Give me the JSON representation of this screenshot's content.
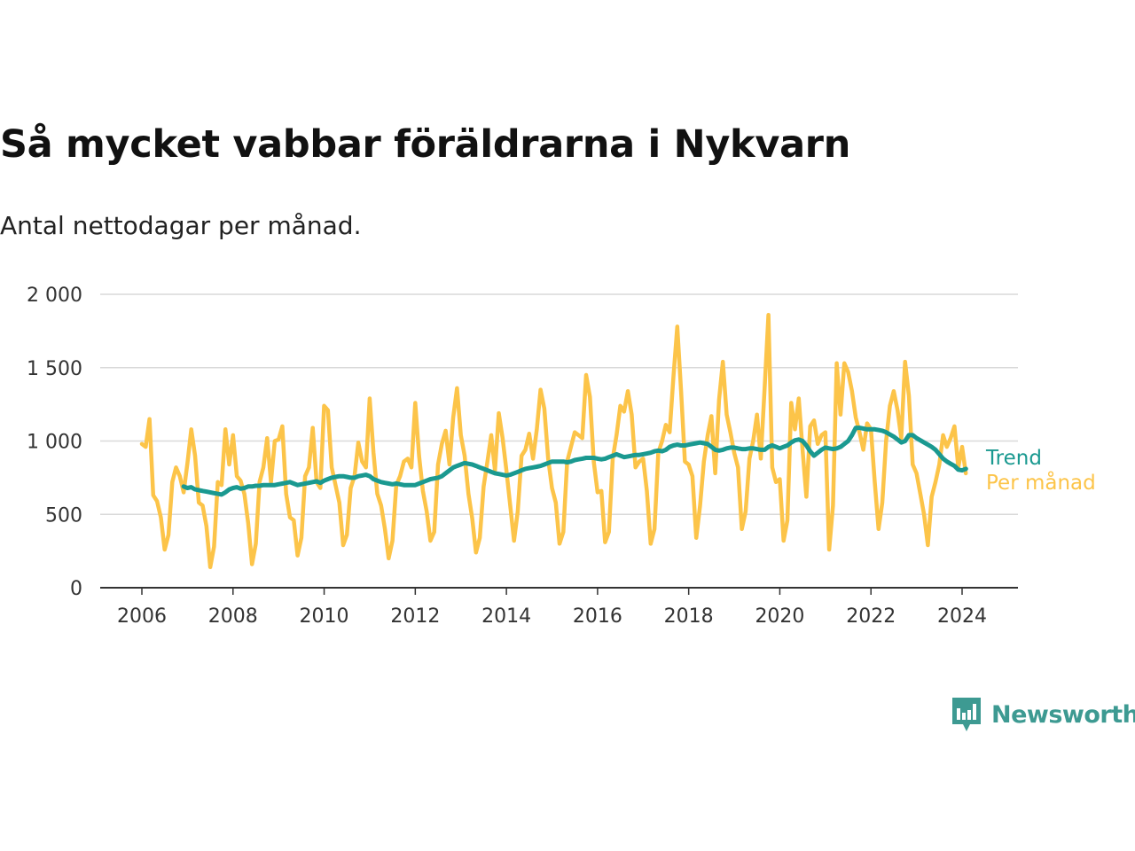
{
  "title": "Så mycket vabbar föräldrarna i Nykvarn",
  "subtitle": "Antal nettodagar per månad.",
  "brand": {
    "name": "Newsworthy",
    "icon": "newsworthy-logo-icon",
    "color": "#3d9a92"
  },
  "colors": {
    "trend": "#1a9990",
    "monthly": "#fcc449",
    "grid": "#d9d9d9",
    "axis": "#333333"
  },
  "chart_data": {
    "type": "line",
    "xlim": [
      2005.6,
      2025.2
    ],
    "ylim": [
      0,
      2000
    ],
    "yticks": [
      0,
      500,
      1000,
      1500,
      2000
    ],
    "ytick_labels": [
      "0",
      "500",
      "1 000",
      "1 500",
      "2 000"
    ],
    "xticks": [
      2006,
      2008,
      2010,
      2012,
      2014,
      2016,
      2018,
      2020,
      2022,
      2024
    ],
    "xtick_labels": [
      "2006",
      "2008",
      "2010",
      "2012",
      "2014",
      "2016",
      "2018",
      "2020",
      "2022",
      "2024"
    ],
    "grid": true,
    "legend": "inline-right",
    "series": [
      {
        "name": "Trend",
        "x_start": 2006.917,
        "step": 0.08333,
        "values": [
          690,
          680,
          685,
          670,
          665,
          660,
          655,
          650,
          645,
          640,
          635,
          650,
          670,
          680,
          685,
          675,
          680,
          690,
          690,
          695,
          695,
          700,
          700,
          700,
          700,
          705,
          710,
          715,
          720,
          710,
          700,
          705,
          710,
          715,
          720,
          725,
          715,
          730,
          740,
          750,
          755,
          760,
          760,
          755,
          750,
          750,
          760,
          765,
          770,
          760,
          740,
          730,
          720,
          715,
          710,
          705,
          710,
          705,
          700,
          700,
          700,
          700,
          710,
          720,
          730,
          740,
          745,
          750,
          760,
          780,
          800,
          820,
          830,
          840,
          850,
          845,
          840,
          830,
          820,
          810,
          800,
          790,
          780,
          775,
          770,
          765,
          770,
          780,
          790,
          800,
          810,
          815,
          820,
          825,
          830,
          840,
          850,
          860,
          860,
          860,
          860,
          855,
          860,
          870,
          875,
          880,
          885,
          885,
          885,
          880,
          875,
          880,
          890,
          900,
          910,
          900,
          890,
          895,
          900,
          905,
          905,
          910,
          915,
          920,
          930,
          935,
          930,
          940,
          960,
          970,
          975,
          970,
          970,
          975,
          980,
          985,
          990,
          985,
          980,
          960,
          940,
          935,
          940,
          950,
          955,
          955,
          950,
          945,
          945,
          950,
          950,
          945,
          940,
          940,
          960,
          970,
          960,
          950,
          960,
          970,
          990,
          1005,
          1010,
          1000,
          970,
          930,
          900,
          920,
          940,
          955,
          950,
          945,
          950,
          960,
          980,
          1000,
          1040,
          1090,
          1090,
          1085,
          1080,
          1080,
          1080,
          1075,
          1070,
          1060,
          1045,
          1030,
          1010,
          990,
          1000,
          1040,
          1040,
          1020,
          1005,
          990,
          975,
          960,
          940,
          910,
          880,
          860,
          845,
          830,
          805,
          800,
          810
        ]
      },
      {
        "name": "Per månad",
        "x_start": 2006.0,
        "step": 0.08333,
        "values": [
          980,
          960,
          1150,
          630,
          590,
          480,
          260,
          360,
          720,
          820,
          760,
          650,
          850,
          1080,
          900,
          580,
          560,
          420,
          140,
          280,
          720,
          700,
          1080,
          840,
          1040,
          760,
          730,
          640,
          440,
          160,
          300,
          720,
          820,
          1020,
          720,
          1000,
          1010,
          1100,
          640,
          480,
          460,
          220,
          340,
          760,
          820,
          1090,
          720,
          680,
          1240,
          1210,
          820,
          700,
          580,
          290,
          360,
          680,
          760,
          990,
          860,
          820,
          1290,
          920,
          640,
          560,
          400,
          200,
          320,
          700,
          760,
          860,
          880,
          820,
          1260,
          900,
          660,
          520,
          320,
          380,
          840,
          980,
          1070,
          840,
          1160,
          1360,
          1040,
          900,
          640,
          470,
          240,
          340,
          690,
          860,
          1040,
          800,
          1190,
          1020,
          800,
          560,
          320,
          520,
          900,
          940,
          1050,
          880,
          1080,
          1350,
          1220,
          880,
          680,
          580,
          300,
          380,
          860,
          960,
          1060,
          1040,
          1020,
          1450,
          1300,
          860,
          650,
          660,
          310,
          380,
          880,
          1040,
          1240,
          1200,
          1340,
          1180,
          820,
          860,
          880,
          660,
          300,
          400,
          920,
          1000,
          1110,
          1060,
          1440,
          1780,
          1340,
          860,
          840,
          760,
          340,
          560,
          860,
          1040,
          1170,
          780,
          1280,
          1540,
          1180,
          1060,
          920,
          820,
          400,
          520,
          880,
          1000,
          1180,
          880,
          1360,
          1860,
          820,
          720,
          740,
          320,
          460,
          1260,
          1080,
          1290,
          940,
          620,
          1100,
          1140,
          980,
          1040,
          1060,
          260,
          560,
          1530,
          1180,
          1530,
          1470,
          1340,
          1160,
          1060,
          940,
          1120,
          1080,
          720,
          400,
          580,
          1000,
          1240,
          1340,
          1210,
          1020,
          1540,
          1310,
          840,
          780,
          640,
          500,
          290,
          620,
          720,
          840,
          1040,
          960,
          1020,
          1100,
          820,
          960,
          780
        ]
      }
    ]
  }
}
